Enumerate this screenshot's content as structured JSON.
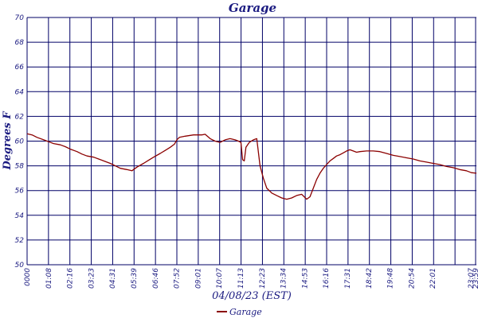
{
  "chart_data": {
    "type": "line",
    "title": "Garage",
    "xlabel": "04/08/23 (EST)",
    "ylabel": "Degrees F",
    "ylim": [
      50,
      70
    ],
    "yticks": [
      50,
      52,
      54,
      56,
      58,
      60,
      62,
      64,
      66,
      68,
      70
    ],
    "xticks": [
      "0000",
      "01:08",
      "02:16",
      "03:23",
      "04:31",
      "05:39",
      "06:46",
      "07:52",
      "09:01",
      "10:07",
      "11:13",
      "12:23",
      "13:34",
      "14:53",
      "16:16",
      "17:31",
      "18:42",
      "19:48",
      "20:54",
      "22:01",
      "23:07",
      "23:59"
    ],
    "grid": true,
    "legend_position": "bottom-center",
    "line_color": "#8b0000",
    "grid_color": "#000066",
    "series": [
      {
        "name": "Garage",
        "points": [
          [
            0.0,
            60.6
          ],
          [
            0.3,
            60.5
          ],
          [
            0.6,
            60.3
          ],
          [
            1.0,
            60.1
          ],
          [
            1.3,
            59.95
          ],
          [
            1.6,
            59.8
          ],
          [
            2.0,
            59.7
          ],
          [
            2.3,
            59.55
          ],
          [
            2.6,
            59.35
          ],
          [
            3.0,
            59.15
          ],
          [
            3.3,
            58.95
          ],
          [
            3.6,
            58.8
          ],
          [
            4.0,
            58.7
          ],
          [
            4.3,
            58.55
          ],
          [
            4.6,
            58.4
          ],
          [
            5.0,
            58.2
          ],
          [
            5.3,
            58.0
          ],
          [
            5.6,
            57.8
          ],
          [
            6.0,
            57.7
          ],
          [
            6.3,
            57.6
          ],
          [
            6.6,
            57.9
          ],
          [
            7.0,
            58.2
          ],
          [
            7.3,
            58.45
          ],
          [
            7.6,
            58.7
          ],
          [
            8.0,
            59.0
          ],
          [
            8.3,
            59.25
          ],
          [
            8.6,
            59.5
          ],
          [
            8.85,
            59.75
          ],
          [
            9.0,
            60.1
          ],
          [
            9.15,
            60.3
          ],
          [
            9.5,
            60.4
          ],
          [
            10.0,
            60.5
          ],
          [
            10.5,
            60.5
          ],
          [
            10.7,
            60.55
          ],
          [
            11.0,
            60.2
          ],
          [
            11.3,
            60.0
          ],
          [
            11.6,
            59.9
          ],
          [
            11.9,
            60.1
          ],
          [
            12.2,
            60.2
          ],
          [
            12.5,
            60.1
          ],
          [
            12.7,
            60.0
          ],
          [
            12.85,
            59.9
          ],
          [
            12.95,
            58.5
          ],
          [
            13.05,
            58.4
          ],
          [
            13.15,
            59.5
          ],
          [
            13.35,
            59.9
          ],
          [
            13.6,
            60.1
          ],
          [
            13.8,
            60.2
          ],
          [
            14.0,
            58.0
          ],
          [
            14.2,
            57.0
          ],
          [
            14.4,
            56.2
          ],
          [
            14.7,
            55.8
          ],
          [
            15.0,
            55.6
          ],
          [
            15.3,
            55.4
          ],
          [
            15.6,
            55.3
          ],
          [
            15.9,
            55.4
          ],
          [
            16.2,
            55.6
          ],
          [
            16.5,
            55.7
          ],
          [
            16.8,
            55.3
          ],
          [
            17.0,
            55.5
          ],
          [
            17.2,
            56.2
          ],
          [
            17.4,
            56.9
          ],
          [
            17.6,
            57.4
          ],
          [
            17.8,
            57.8
          ],
          [
            18.0,
            58.1
          ],
          [
            18.2,
            58.4
          ],
          [
            18.4,
            58.6
          ],
          [
            18.6,
            58.8
          ],
          [
            18.8,
            58.9
          ],
          [
            19.0,
            59.05
          ],
          [
            19.2,
            59.2
          ],
          [
            19.4,
            59.3
          ],
          [
            19.6,
            59.2
          ],
          [
            19.8,
            59.1
          ],
          [
            20.0,
            59.15
          ],
          [
            20.4,
            59.2
          ],
          [
            20.8,
            59.2
          ],
          [
            21.2,
            59.15
          ],
          [
            21.6,
            59.0
          ],
          [
            22.0,
            58.85
          ],
          [
            22.4,
            58.75
          ],
          [
            22.8,
            58.65
          ],
          [
            23.2,
            58.55
          ],
          [
            23.6,
            58.4
          ],
          [
            24.0,
            58.3
          ],
          [
            24.4,
            58.2
          ],
          [
            24.8,
            58.1
          ],
          [
            25.2,
            57.95
          ],
          [
            25.6,
            57.85
          ],
          [
            26.0,
            57.7
          ],
          [
            26.4,
            57.6
          ],
          [
            26.7,
            57.45
          ],
          [
            27.0,
            57.4
          ]
        ]
      }
    ]
  }
}
